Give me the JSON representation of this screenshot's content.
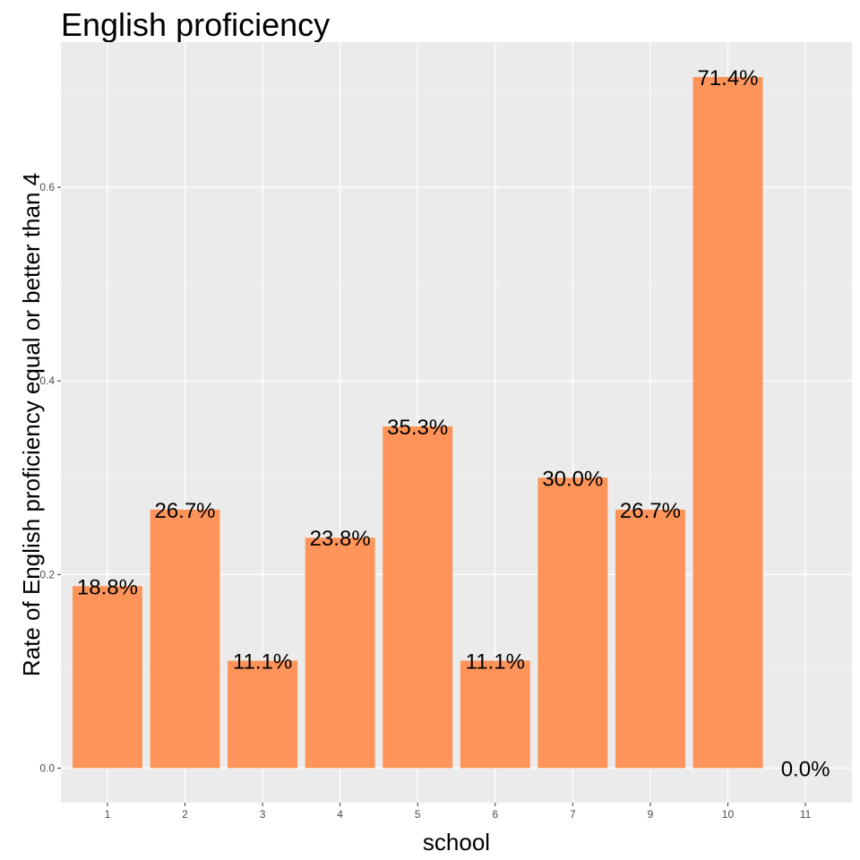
{
  "chart_data": {
    "type": "bar",
    "title": "English proficiency",
    "xlabel": "school",
    "ylabel": "Rate of English proficiency equal or better than 4",
    "categories": [
      "1",
      "2",
      "3",
      "4",
      "5",
      "6",
      "7",
      "9",
      "10",
      "11"
    ],
    "values": [
      0.188,
      0.267,
      0.111,
      0.238,
      0.353,
      0.111,
      0.3,
      0.267,
      0.714,
      0.0
    ],
    "data_labels": [
      "18.8%",
      "26.7%",
      "11.1%",
      "23.8%",
      "35.3%",
      "11.1%",
      "30.0%",
      "26.7%",
      "71.4%",
      "0.0%"
    ],
    "yticks": [
      0.0,
      0.2,
      0.4,
      0.6
    ],
    "ytick_labels": [
      "0.0",
      "0.2",
      "0.4",
      "0.6"
    ],
    "ylim": [
      -0.0357,
      0.75
    ],
    "grid": true,
    "legend": "none",
    "colors": {
      "bar": "#FF945A",
      "panel": "#EBEBEB",
      "grid_major": "#FFFFFF",
      "grid_minor": "#F5F5F5",
      "tick": "#333333"
    }
  }
}
